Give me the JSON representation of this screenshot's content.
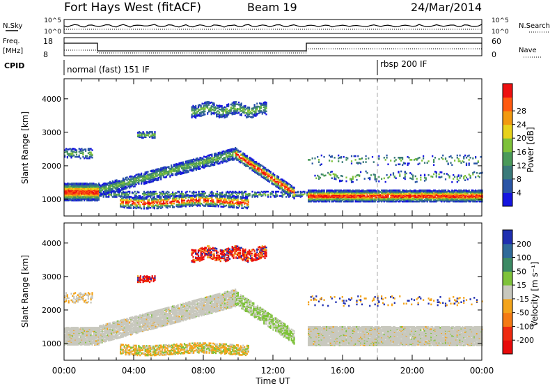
{
  "header": {
    "station": "Fort Hays West (fitACF)",
    "beam": "Beam 19",
    "date": "24/Mar/2014"
  },
  "status_panel": {
    "left_labels": {
      "nsky": "N.Sky",
      "freq": "Freq.",
      "freq_unit": "[MHz]",
      "cpid": "CPID"
    },
    "right_labels": {
      "nsearch": "N.Search",
      "nave": "Nave"
    },
    "noise_ticks": {
      "left_top": "10^5",
      "left_bottom": "10^0",
      "right_top": "10^5",
      "right_bottom": "10^0"
    },
    "freq_ticks": {
      "left_top": "18",
      "left_bottom": "8",
      "right_top": "60",
      "right_bottom": "0"
    },
    "cpid_segments": [
      {
        "label": "normal (fast) 151 IF",
        "start_hour": 0
      },
      {
        "label": "rbsp 200 IF",
        "start_hour": 18
      }
    ]
  },
  "chart_data": [
    {
      "type": "heatmap",
      "name": "power",
      "ylabel": "Slant Range [km]",
      "xlabel": "Time UT",
      "x_ticks": [
        "00:00",
        "04:00",
        "08:00",
        "12:00",
        "16:00",
        "20:00",
        "00:00"
      ],
      "y_ticks": [
        "1000",
        "2000",
        "3000",
        "4000"
      ],
      "ylim": [
        500,
        4600
      ],
      "xlim_hours": [
        0,
        24
      ],
      "colorbar": {
        "label": "Power [dB]",
        "ticks": [
          "4",
          "8",
          "12",
          "16",
          "20",
          "24",
          "28"
        ],
        "colors": [
          "#1515e0",
          "#2a55a6",
          "#3a7a7a",
          "#4a9a5a",
          "#7ec23a",
          "#e8d21a",
          "#f29a10",
          "#ff5a10",
          "#ee1010"
        ]
      },
      "regions": [
        {
          "x": [
            0,
            2
          ],
          "y_center": 1250,
          "band_width": 200,
          "level": 28
        },
        {
          "x": [
            2,
            10
          ],
          "y_center": 1250,
          "rises_to": 2400,
          "level": 20
        },
        {
          "x": [
            3,
            10.5
          ],
          "y_center": 1000,
          "band_width": 250,
          "level": 22
        },
        {
          "x": [
            7,
            12
          ],
          "y_center": 3750,
          "band_width": 250,
          "level": 12
        },
        {
          "x": [
            4,
            5.5
          ],
          "y_center": 2950,
          "band_width": 150,
          "level": 10
        },
        {
          "x": [
            10,
            14
          ],
          "y_center": 2400,
          "falls_to": 1000,
          "level": 20
        },
        {
          "x": [
            14,
            24
          ],
          "y_center": 1150,
          "band_width": 200,
          "level": 26
        }
      ]
    },
    {
      "type": "heatmap",
      "name": "velocity",
      "ylabel": "Slant Range [km]",
      "xlabel": "Time UT",
      "x_ticks": [
        "00:00",
        "04:00",
        "08:00",
        "12:00",
        "16:00",
        "20:00",
        "00:00"
      ],
      "y_ticks": [
        "1000",
        "2000",
        "3000",
        "4000"
      ],
      "ylim": [
        500,
        4600
      ],
      "xlim_hours": [
        0,
        24
      ],
      "colorbar": {
        "label": "Velocity [m s⁻¹]",
        "ticks": [
          "200",
          "100",
          "50",
          "15",
          "-15",
          "-50",
          "-100",
          "-200"
        ],
        "colors": [
          "#1f2fb0",
          "#2f6a9a",
          "#3c8a64",
          "#7ec23a",
          "#c8c8be",
          "#f3a41c",
          "#f47a14",
          "#ee2a10",
          "#e80a0a"
        ]
      },
      "regions": [
        {
          "x": [
            0,
            14
          ],
          "y_center": 1250,
          "velocity_class": "ground scatter (gray)"
        },
        {
          "x": [
            14,
            24
          ],
          "y_center": 1150,
          "velocity_class": "ground scatter (gray)"
        },
        {
          "x": [
            7,
            12
          ],
          "y_center": 3700,
          "velocity_class": "mixed red/blue"
        },
        {
          "x": [
            3,
            10.5
          ],
          "y_center": 850,
          "velocity_class": "orange/green"
        }
      ]
    }
  ],
  "xlabel": "Time UT"
}
